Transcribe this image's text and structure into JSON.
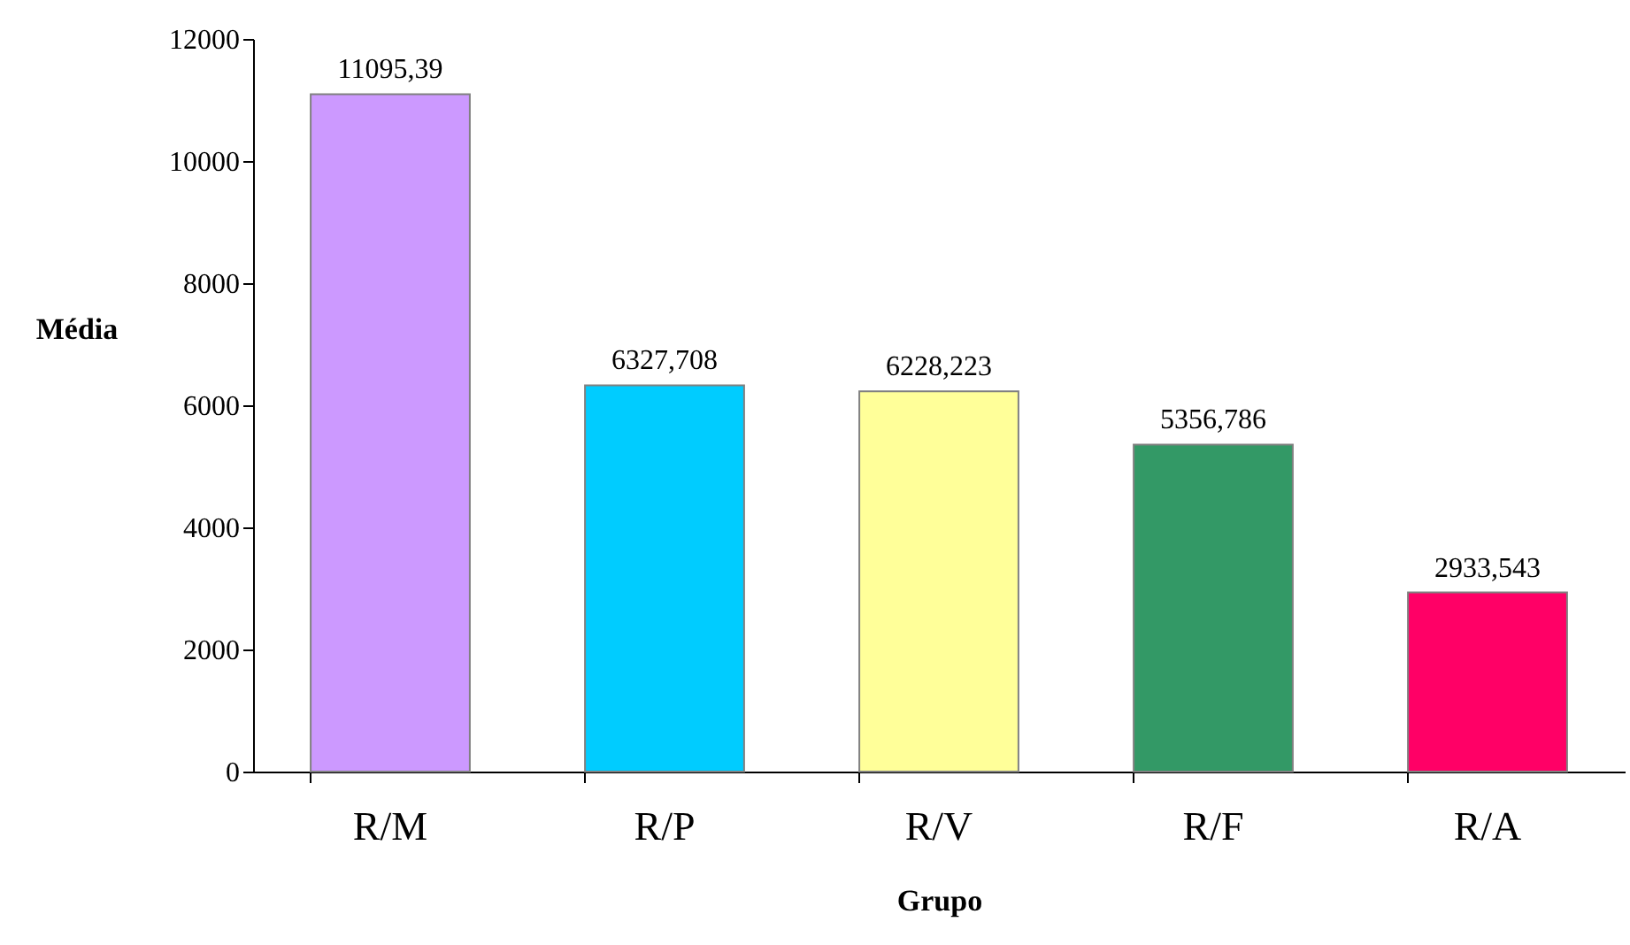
{
  "chart_data": {
    "type": "bar",
    "xlabel": "Grupo",
    "ylabel": "Média",
    "categories": [
      "R/M",
      "R/P",
      "R/V",
      "R/F",
      "R/A"
    ],
    "values": [
      11095.39,
      6327.708,
      6228.223,
      5356.786,
      2933.543
    ],
    "value_labels": [
      "11095,39",
      "6327,708",
      "6228,223",
      "5356,786",
      "2933,543"
    ],
    "colors": [
      "#cc99ff",
      "#00ccff",
      "#ffff99",
      "#339966",
      "#ff0066"
    ],
    "ylim": [
      0,
      12000
    ],
    "yticks": [
      0,
      2000,
      4000,
      6000,
      8000,
      10000,
      12000
    ],
    "grid": false,
    "legend": false
  }
}
